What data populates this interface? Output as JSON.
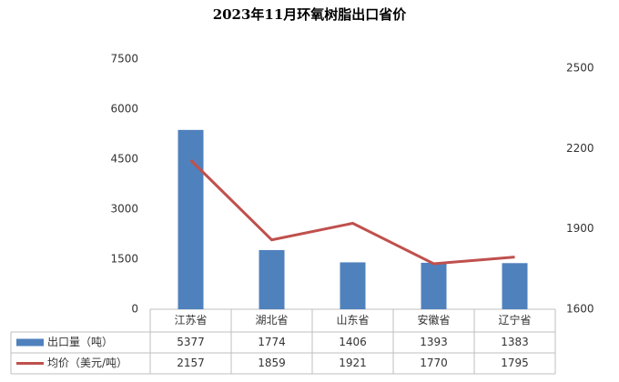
{
  "chart_data": {
    "type": "bar-line",
    "title": "2023年11月环氧树脂出口省价",
    "categories": [
      "江苏省",
      "湖北省",
      "山东省",
      "安徽省",
      "辽宁省"
    ],
    "series": [
      {
        "name": "出口量（吨）",
        "type": "bar",
        "color": "#4f81bd",
        "values": [
          5377,
          1774,
          1406,
          1393,
          1383
        ]
      },
      {
        "name": "均价（美元/吨）",
        "type": "line",
        "axis": "y2",
        "color": "#c0504d",
        "values": [
          2157,
          1859,
          1921,
          1770,
          1795
        ]
      }
    ],
    "ylim": [
      0,
      7500
    ],
    "yticks": [
      0,
      1500,
      3000,
      4500,
      6000,
      7500
    ],
    "y2lim": [
      1600,
      2500
    ],
    "y2ticks": [
      1600,
      1900,
      2200,
      2500
    ],
    "legend": "data-table",
    "grid": false
  }
}
